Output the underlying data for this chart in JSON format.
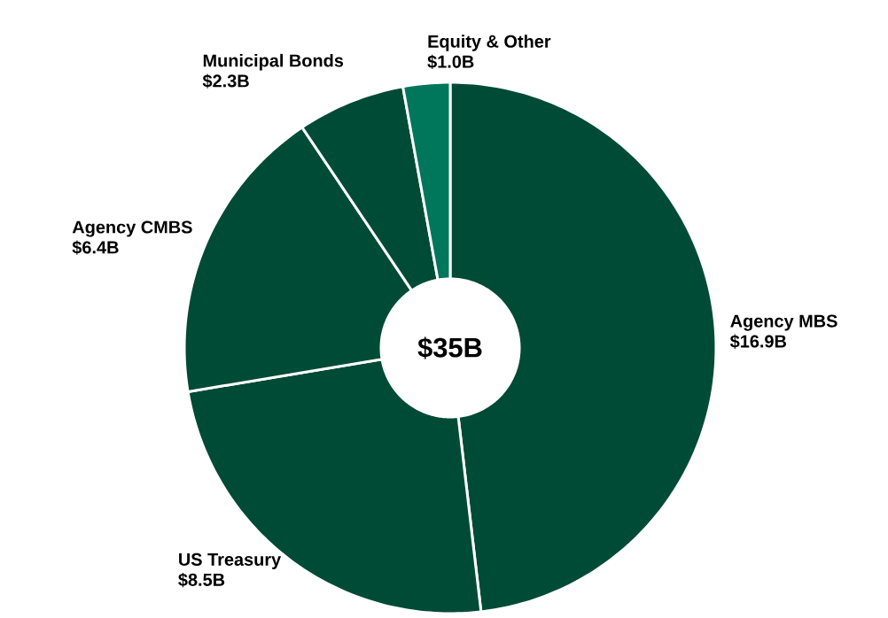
{
  "chart_data": {
    "type": "donut",
    "categories": [
      "Agency MBS",
      "US Treasury",
      "Agency CMBS",
      "Municipal Bonds",
      "Equity & Other"
    ],
    "values": [
      16.9,
      8.5,
      6.4,
      2.3,
      1.0
    ],
    "value_labels": [
      "$16.9B",
      "$8.5B",
      "$6.4B",
      "$2.3B",
      "$1.0B"
    ],
    "colors": [
      "#004b35",
      "#004b35",
      "#004b35",
      "#004b35",
      "#00765a"
    ],
    "annotations": [
      "$35B"
    ]
  }
}
